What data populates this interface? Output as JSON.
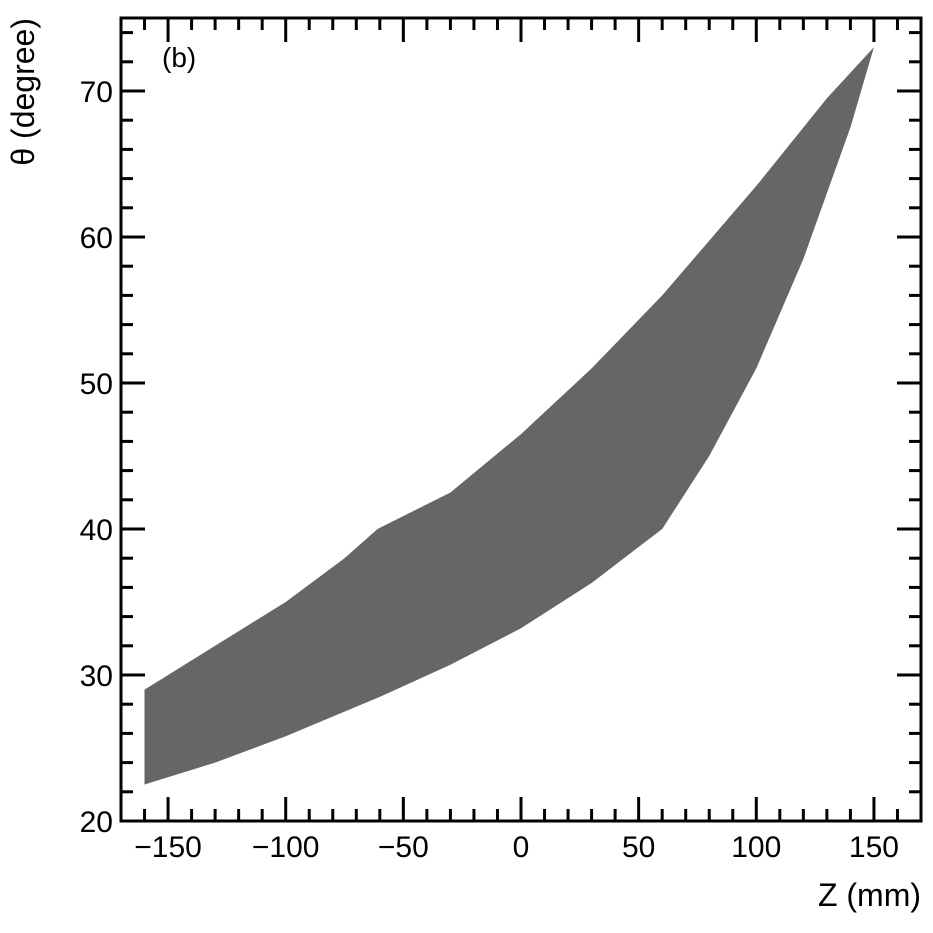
{
  "chart_data": {
    "type": "area",
    "panel_label": "(b)",
    "xlabel": "Z (mm)",
    "ylabel": "θ (degree)",
    "xlim": [
      -170,
      170
    ],
    "ylim": [
      20,
      75
    ],
    "grid": false,
    "x_ticks": [
      -150,
      -100,
      -50,
      0,
      50,
      100,
      150
    ],
    "x_tick_labels": [
      "−150",
      "−100",
      "−50",
      "0",
      "50",
      "100",
      "150"
    ],
    "y_ticks": [
      20,
      30,
      40,
      50,
      60,
      70
    ],
    "y_tick_labels": [
      "20",
      "30",
      "40",
      "50",
      "60",
      "70"
    ],
    "fill_color": "#666666",
    "region": {
      "upper": [
        {
          "x": -160,
          "y": 29.0
        },
        {
          "x": -150,
          "y": 30.0
        },
        {
          "x": -130,
          "y": 32.0
        },
        {
          "x": -100,
          "y": 35.0
        },
        {
          "x": -75,
          "y": 38.0
        },
        {
          "x": -61,
          "y": 40.0
        },
        {
          "x": -30,
          "y": 42.5
        },
        {
          "x": 0,
          "y": 46.5
        },
        {
          "x": 30,
          "y": 51.0
        },
        {
          "x": 60,
          "y": 56.0
        },
        {
          "x": 100,
          "y": 63.5
        },
        {
          "x": 130,
          "y": 69.5
        },
        {
          "x": 150,
          "y": 73.0
        }
      ],
      "lower": [
        {
          "x": -160,
          "y": 22.5
        },
        {
          "x": -130,
          "y": 24.0
        },
        {
          "x": -100,
          "y": 25.8
        },
        {
          "x": -60,
          "y": 28.5
        },
        {
          "x": -30,
          "y": 30.7
        },
        {
          "x": 0,
          "y": 33.2
        },
        {
          "x": 30,
          "y": 36.3
        },
        {
          "x": 60,
          "y": 40.0
        },
        {
          "x": 80,
          "y": 45.0
        },
        {
          "x": 100,
          "y": 51.0
        },
        {
          "x": 120,
          "y": 58.5
        },
        {
          "x": 140,
          "y": 67.5
        },
        {
          "x": 150,
          "y": 73.0
        }
      ]
    }
  }
}
